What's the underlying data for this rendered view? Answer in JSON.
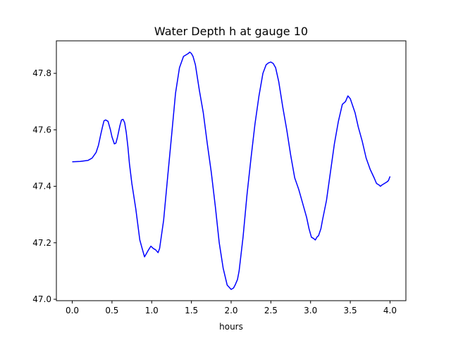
{
  "chart_data": {
    "type": "line",
    "title": "Water Depth h at gauge 10",
    "xlabel": "hours",
    "ylabel": "",
    "xlim": [
      -0.2,
      4.2
    ],
    "ylim": [
      46.995,
      47.915
    ],
    "xticks": [
      0.0,
      0.5,
      1.0,
      1.5,
      2.0,
      2.5,
      3.0,
      3.5,
      4.0
    ],
    "xtick_labels": [
      "0.0",
      "0.5",
      "1.0",
      "1.5",
      "2.0",
      "2.5",
      "3.0",
      "3.5",
      "4.0"
    ],
    "yticks": [
      47.0,
      47.2,
      47.4,
      47.6,
      47.8
    ],
    "ytick_labels": [
      "47.0",
      "47.2",
      "47.4",
      "47.6",
      "47.8"
    ],
    "grid": false,
    "series": [
      {
        "color": "#0000ff",
        "x": [
          0.0,
          0.1,
          0.2,
          0.25,
          0.3,
          0.33,
          0.36,
          0.38,
          0.4,
          0.42,
          0.45,
          0.48,
          0.5,
          0.53,
          0.55,
          0.57,
          0.6,
          0.62,
          0.64,
          0.66,
          0.68,
          0.7,
          0.72,
          0.75,
          0.8,
          0.85,
          0.88,
          0.91,
          0.93,
          0.96,
          0.99,
          1.02,
          1.05,
          1.08,
          1.1,
          1.15,
          1.2,
          1.25,
          1.3,
          1.35,
          1.4,
          1.43,
          1.46,
          1.48,
          1.5,
          1.52,
          1.55,
          1.6,
          1.65,
          1.7,
          1.75,
          1.8,
          1.85,
          1.9,
          1.95,
          2.0,
          2.03,
          2.05,
          2.08,
          2.1,
          2.15,
          2.2,
          2.25,
          2.3,
          2.35,
          2.4,
          2.44,
          2.47,
          2.5,
          2.53,
          2.56,
          2.6,
          2.65,
          2.7,
          2.75,
          2.8,
          2.85,
          2.88,
          2.92,
          2.95,
          2.98,
          3.01,
          3.04,
          3.06,
          3.08,
          3.1,
          3.13,
          3.15,
          3.2,
          3.25,
          3.3,
          3.35,
          3.4,
          3.44,
          3.47,
          3.5,
          3.53,
          3.56,
          3.6,
          3.65,
          3.7,
          3.75,
          3.8,
          3.83,
          3.86,
          3.88,
          3.9,
          3.93,
          3.96,
          3.98,
          4.0
        ],
        "y": [
          47.487,
          47.488,
          47.492,
          47.5,
          47.52,
          47.545,
          47.585,
          47.61,
          47.632,
          47.635,
          47.63,
          47.6,
          47.575,
          47.55,
          47.553,
          47.575,
          47.615,
          47.635,
          47.637,
          47.625,
          47.59,
          47.54,
          47.48,
          47.41,
          47.32,
          47.21,
          47.18,
          47.15,
          47.16,
          47.175,
          47.188,
          47.18,
          47.175,
          47.165,
          47.18,
          47.28,
          47.43,
          47.58,
          47.73,
          47.82,
          47.86,
          47.865,
          47.87,
          47.875,
          47.87,
          47.86,
          47.83,
          47.74,
          47.66,
          47.55,
          47.45,
          47.33,
          47.2,
          47.11,
          47.05,
          47.035,
          47.04,
          47.05,
          47.07,
          47.1,
          47.22,
          47.37,
          47.5,
          47.62,
          47.72,
          47.8,
          47.83,
          47.837,
          47.84,
          47.835,
          47.82,
          47.77,
          47.68,
          47.6,
          47.51,
          47.43,
          47.39,
          47.36,
          47.32,
          47.29,
          47.25,
          47.22,
          47.215,
          47.21,
          47.22,
          47.225,
          47.25,
          47.28,
          47.35,
          47.45,
          47.55,
          47.63,
          47.69,
          47.7,
          47.72,
          47.71,
          47.685,
          47.66,
          47.61,
          47.56,
          47.5,
          47.46,
          47.43,
          47.41,
          47.405,
          47.4,
          47.405,
          47.41,
          47.415,
          47.42,
          47.435
        ]
      }
    ]
  }
}
